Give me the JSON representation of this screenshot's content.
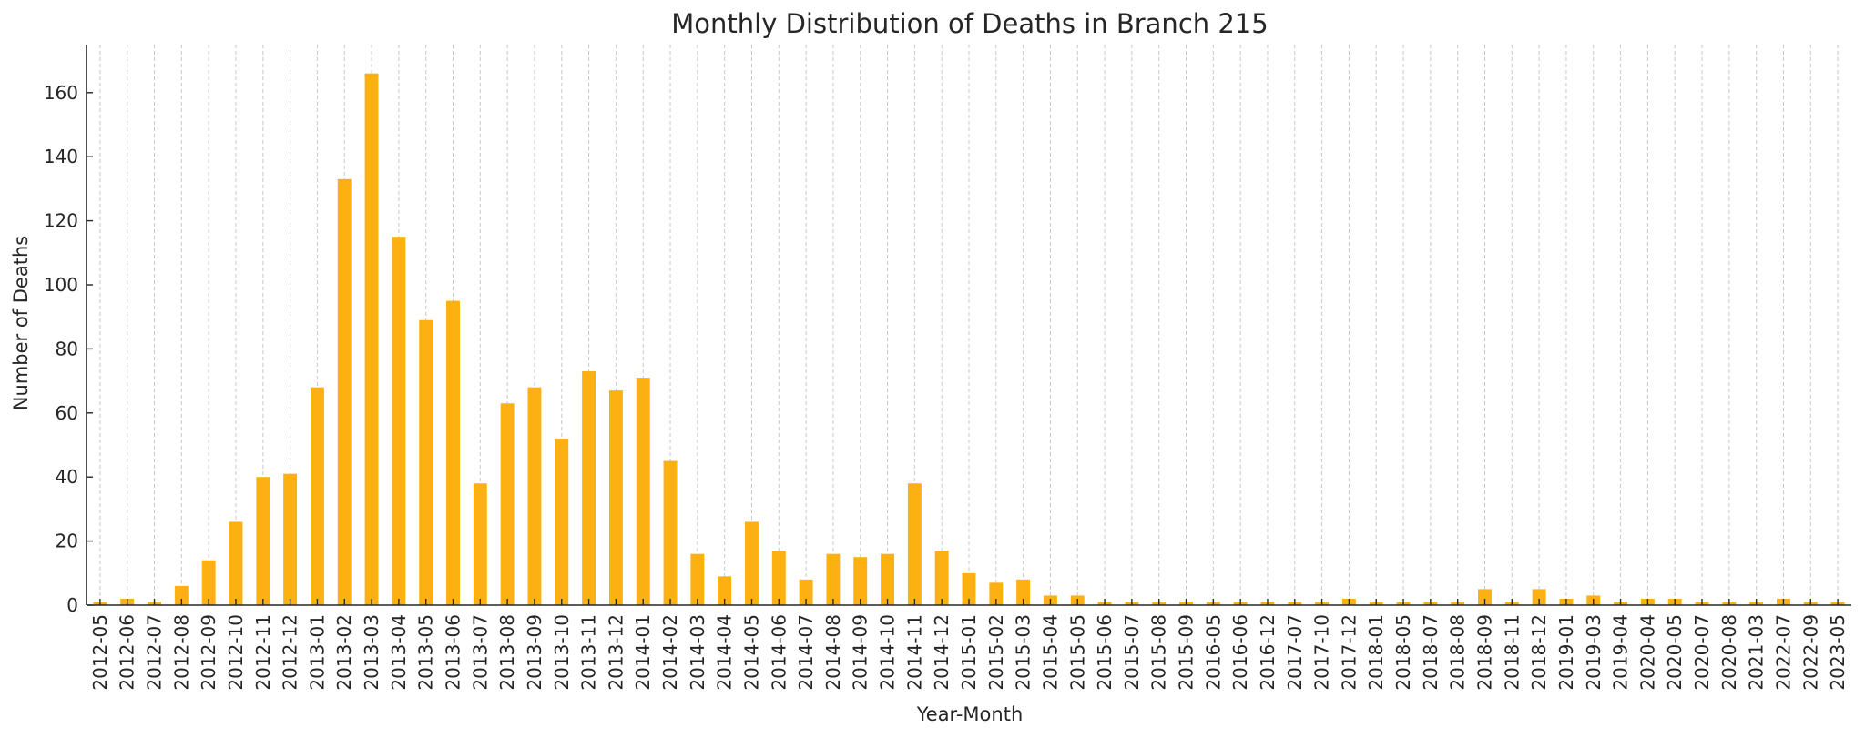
{
  "chart_data": {
    "type": "bar",
    "title": "Monthly Distribution of Deaths in Branch 215",
    "xlabel": "Year-Month",
    "ylabel": "Number of Deaths",
    "ylim": [
      0,
      175
    ],
    "yticks": [
      0,
      20,
      40,
      60,
      80,
      100,
      120,
      140,
      160
    ],
    "grid": "vertical dashed",
    "bar_color": "#FDB012",
    "categories": [
      "2012-05",
      "2012-06",
      "2012-07",
      "2012-08",
      "2012-09",
      "2012-10",
      "2012-11",
      "2012-12",
      "2013-01",
      "2013-02",
      "2013-03",
      "2013-04",
      "2013-05",
      "2013-06",
      "2013-07",
      "2013-08",
      "2013-09",
      "2013-10",
      "2013-11",
      "2013-12",
      "2014-01",
      "2014-02",
      "2014-03",
      "2014-04",
      "2014-05",
      "2014-06",
      "2014-07",
      "2014-08",
      "2014-09",
      "2014-10",
      "2014-11",
      "2014-12",
      "2015-01",
      "2015-02",
      "2015-03",
      "2015-04",
      "2015-05",
      "2015-06",
      "2015-07",
      "2015-08",
      "2015-09",
      "2016-05",
      "2016-06",
      "2016-12",
      "2017-07",
      "2017-10",
      "2017-12",
      "2018-01",
      "2018-05",
      "2018-07",
      "2018-08",
      "2018-09",
      "2018-11",
      "2018-12",
      "2019-01",
      "2019-03",
      "2019-04",
      "2020-04",
      "2020-05",
      "2020-07",
      "2020-08",
      "2021-03",
      "2022-07",
      "2022-09",
      "2023-05"
    ],
    "values": [
      1,
      2,
      1,
      6,
      14,
      26,
      40,
      41,
      68,
      133,
      166,
      115,
      89,
      95,
      38,
      63,
      68,
      52,
      73,
      67,
      71,
      45,
      16,
      9,
      26,
      17,
      8,
      16,
      15,
      16,
      38,
      17,
      10,
      7,
      8,
      3,
      3,
      1,
      1,
      1,
      1,
      1,
      1,
      1,
      1,
      1,
      2,
      1,
      1,
      1,
      1,
      5,
      1,
      5,
      2,
      3,
      1,
      2,
      2,
      1,
      1,
      1,
      2,
      1,
      1
    ]
  }
}
